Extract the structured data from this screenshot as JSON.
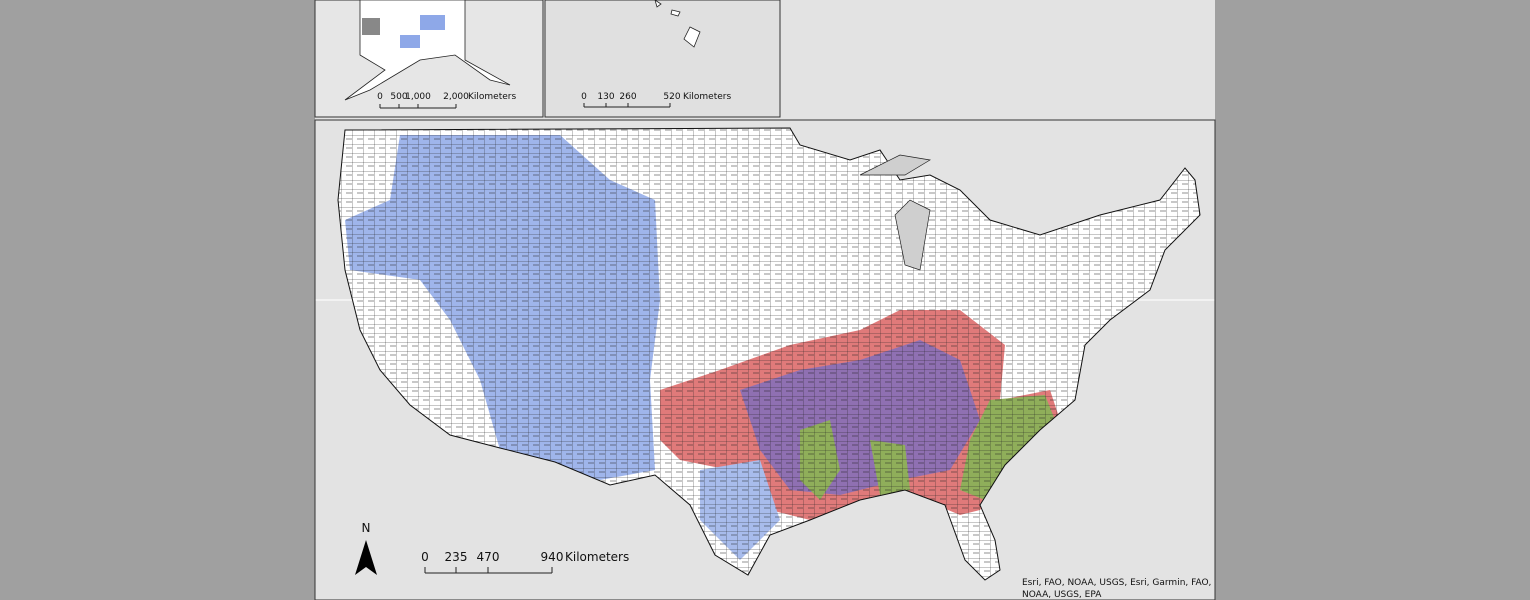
{
  "alaska_inset": {
    "scale_labels": [
      "0",
      "500",
      "1,000",
      "2,000"
    ],
    "unit": "Kilometers"
  },
  "hawaii_inset": {
    "scale_labels": [
      "0",
      "130",
      "260",
      "520"
    ],
    "unit": "Kilometers"
  },
  "main_map": {
    "scale_labels": [
      "0",
      "235",
      "470",
      "940"
    ],
    "unit": "Kilometers"
  },
  "north_arrow": "N",
  "attribution": [
    "Esri, FAO, NOAA, USGS, Esri, Garmin, FAO,",
    "NOAA, USGS, EPA"
  ]
}
